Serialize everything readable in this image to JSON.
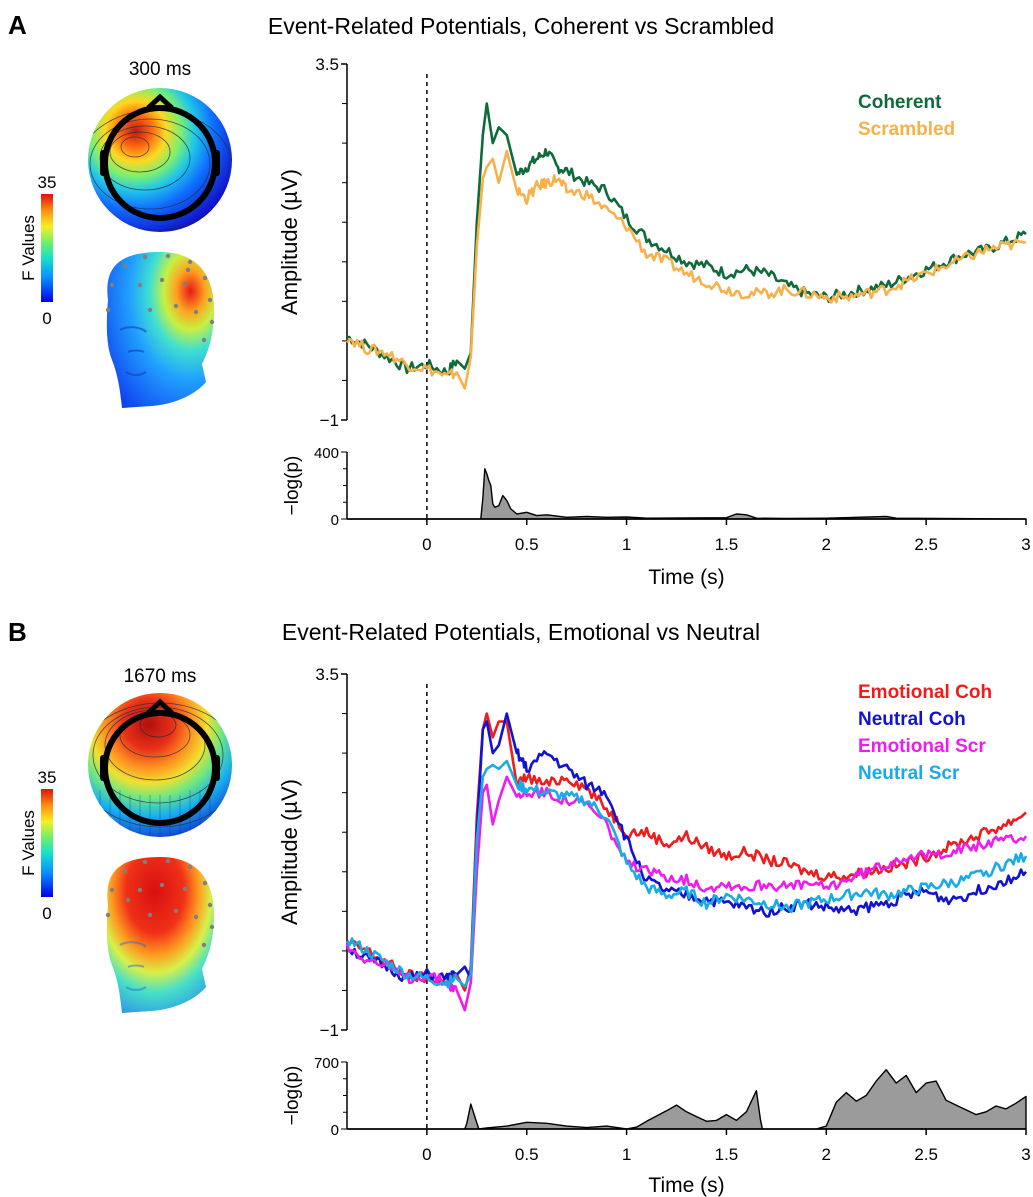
{
  "panels": [
    {
      "label": "A",
      "title": "Event-Related Potentials, Coherent vs Scrambled",
      "topo_time": "300 ms",
      "colorbar": {
        "title": "F Values",
        "max_label": "35",
        "min_label": "0"
      }
    },
    {
      "label": "B",
      "title": "Event-Related Potentials, Emotional vs Neutral",
      "topo_time": "1670 ms",
      "colorbar": {
        "title": "F Values",
        "max_label": "35",
        "min_label": "0"
      }
    }
  ],
  "colors": {
    "coherent": "#0f6a3c",
    "scrambled": "#f7b14a",
    "emotional_coh": "#ee1c1c",
    "neutral_coh": "#1313cf",
    "emotional_scr": "#ee1cee",
    "neutral_scr": "#1aaae6",
    "pvalue_fill": "#9b9b9b"
  },
  "chart_data": [
    {
      "type": "line",
      "panel": "A",
      "ylabel": "Amplitude (µV)",
      "xlabel": "Time (s)",
      "xlim": [
        -0.4,
        3
      ],
      "ylim": [
        -1,
        3.5
      ],
      "ytick_labels": [
        "3.5",
        "−1"
      ],
      "xticks": [
        0,
        0.5,
        1,
        1.5,
        2,
        2.5,
        3
      ],
      "xtick_labels": [
        "0",
        "0.5",
        "1",
        "1.5",
        "2",
        "2.5",
        "3"
      ],
      "stim_onset": 0,
      "legend_position": "top-right",
      "series": [
        {
          "name": "Coherent",
          "color": "#0f6a3c",
          "x": [
            -0.4,
            -0.3,
            -0.2,
            -0.1,
            0,
            0.1,
            0.15,
            0.19,
            0.22,
            0.25,
            0.28,
            0.3,
            0.33,
            0.36,
            0.4,
            0.45,
            0.5,
            0.55,
            0.6,
            0.65,
            0.7,
            0.8,
            0.9,
            1,
            1.1,
            1.2,
            1.3,
            1.4,
            1.5,
            1.6,
            1.7,
            1.8,
            1.9,
            2,
            2.1,
            2.2,
            2.3,
            2.4,
            2.5,
            2.6,
            2.7,
            2.8,
            2.9,
            3
          ],
          "y": [
            0.05,
            -0.05,
            -0.2,
            -0.35,
            -0.3,
            -0.4,
            -0.25,
            -0.35,
            -0.15,
            1.5,
            2.6,
            3.0,
            2.5,
            2.7,
            2.6,
            2.1,
            2.2,
            2.3,
            2.4,
            2.2,
            2.15,
            2.0,
            1.9,
            1.55,
            1.3,
            1.15,
            1.0,
            0.95,
            0.85,
            0.9,
            0.85,
            0.7,
            0.6,
            0.55,
            0.6,
            0.65,
            0.7,
            0.8,
            0.9,
            1.0,
            1.1,
            1.15,
            1.25,
            1.35
          ]
        },
        {
          "name": "Scrambled",
          "color": "#f7b14a",
          "x": [
            -0.4,
            -0.3,
            -0.2,
            -0.1,
            0,
            0.1,
            0.15,
            0.19,
            0.22,
            0.25,
            0.28,
            0.3,
            0.33,
            0.36,
            0.4,
            0.45,
            0.5,
            0.55,
            0.6,
            0.65,
            0.7,
            0.8,
            0.9,
            1,
            1.1,
            1.2,
            1.3,
            1.4,
            1.5,
            1.6,
            1.7,
            1.8,
            1.9,
            2,
            2.1,
            2.2,
            2.3,
            2.4,
            2.5,
            2.6,
            2.7,
            2.8,
            2.9,
            3
          ],
          "y": [
            0.05,
            -0.1,
            -0.15,
            -0.3,
            -0.35,
            -0.45,
            -0.4,
            -0.6,
            -0.2,
            1.2,
            2.05,
            2.2,
            2.3,
            2.0,
            2.4,
            1.9,
            1.8,
            1.95,
            2.0,
            2.05,
            1.9,
            1.85,
            1.65,
            1.45,
            1.1,
            1.0,
            0.85,
            0.75,
            0.65,
            0.6,
            0.6,
            0.65,
            0.6,
            0.55,
            0.55,
            0.6,
            0.65,
            0.75,
            0.85,
            0.95,
            1.05,
            1.15,
            1.2,
            1.25
          ]
        }
      ],
      "significance": {
        "ylabel": "−log(p)",
        "ylim": [
          0,
          400
        ],
        "ytick_labels": [
          "400",
          "0"
        ],
        "x": [
          -0.4,
          0.27,
          0.28,
          0.29,
          0.3,
          0.31,
          0.32,
          0.33,
          0.34,
          0.36,
          0.38,
          0.4,
          0.42,
          0.45,
          0.5,
          0.55,
          0.6,
          0.7,
          0.8,
          0.9,
          1.0,
          1.1,
          1.5,
          1.55,
          1.6,
          1.65,
          1.8,
          2.0,
          2.3,
          2.35,
          3
        ],
        "y": [
          0,
          0,
          120,
          300,
          270,
          230,
          200,
          90,
          70,
          80,
          140,
          110,
          60,
          30,
          40,
          20,
          25,
          10,
          15,
          10,
          12,
          5,
          8,
          30,
          25,
          5,
          3,
          5,
          15,
          5,
          0
        ]
      }
    },
    {
      "type": "line",
      "panel": "B",
      "ylabel": "Amplitude (µV)",
      "xlabel": "Time (s)",
      "xlim": [
        -0.4,
        3
      ],
      "ylim": [
        -1,
        3.5
      ],
      "ytick_labels": [
        "3.5",
        "−1"
      ],
      "xticks": [
        0,
        0.5,
        1,
        1.5,
        2,
        2.5,
        3
      ],
      "xtick_labels": [
        "0",
        "0.5",
        "1",
        "1.5",
        "2",
        "2.5",
        "3"
      ],
      "stim_onset": 0,
      "legend_position": "top-right",
      "series": [
        {
          "name": "Emotional Coh",
          "color": "#ee1c1c",
          "x": [
            -0.4,
            -0.3,
            -0.2,
            -0.1,
            0,
            0.1,
            0.15,
            0.19,
            0.22,
            0.25,
            0.28,
            0.3,
            0.33,
            0.36,
            0.4,
            0.45,
            0.5,
            0.6,
            0.7,
            0.8,
            0.9,
            1.0,
            1.1,
            1.2,
            1.3,
            1.4,
            1.5,
            1.6,
            1.7,
            1.8,
            1.9,
            2.0,
            2.1,
            2.2,
            2.3,
            2.4,
            2.5,
            2.6,
            2.7,
            2.8,
            2.9,
            3
          ],
          "y": [
            0.1,
            0,
            -0.15,
            -0.3,
            -0.35,
            -0.4,
            -0.3,
            -0.5,
            -0.2,
            1.7,
            2.8,
            3.0,
            2.7,
            2.9,
            2.9,
            2.1,
            2.2,
            2.1,
            2.2,
            2.05,
            1.8,
            1.5,
            1.5,
            1.35,
            1.45,
            1.3,
            1.2,
            1.25,
            1.15,
            1.1,
            1.0,
            0.95,
            0.95,
            1.0,
            1.05,
            1.1,
            1.2,
            1.3,
            1.4,
            1.5,
            1.6,
            1.75
          ]
        },
        {
          "name": "Neutral Coh",
          "color": "#1313cf",
          "x": [
            -0.4,
            -0.3,
            -0.2,
            -0.1,
            0,
            0.1,
            0.15,
            0.19,
            0.22,
            0.25,
            0.28,
            0.3,
            0.33,
            0.36,
            0.4,
            0.45,
            0.5,
            0.6,
            0.7,
            0.8,
            0.9,
            1.0,
            1.1,
            1.2,
            1.3,
            1.4,
            1.5,
            1.6,
            1.7,
            1.8,
            1.9,
            2.0,
            2.1,
            2.2,
            2.3,
            2.4,
            2.5,
            2.6,
            2.7,
            2.8,
            2.9,
            3
          ],
          "y": [
            0.05,
            -0.1,
            -0.2,
            -0.35,
            -0.3,
            -0.35,
            -0.3,
            -0.2,
            -0.35,
            1.5,
            2.8,
            2.9,
            2.5,
            2.6,
            3.0,
            2.5,
            2.3,
            2.5,
            2.3,
            2.1,
            2.0,
            1.4,
            0.9,
            0.75,
            0.7,
            0.65,
            0.6,
            0.55,
            0.5,
            0.55,
            0.6,
            0.55,
            0.5,
            0.55,
            0.6,
            0.7,
            0.75,
            0.65,
            0.7,
            0.8,
            0.9,
            1.0
          ]
        },
        {
          "name": "Emotional Scr",
          "color": "#ee1cee",
          "x": [
            -0.4,
            -0.3,
            -0.2,
            -0.1,
            0,
            0.1,
            0.15,
            0.19,
            0.22,
            0.25,
            0.28,
            0.3,
            0.33,
            0.36,
            0.4,
            0.45,
            0.5,
            0.6,
            0.7,
            0.8,
            0.9,
            1.0,
            1.1,
            1.2,
            1.3,
            1.4,
            1.5,
            1.6,
            1.7,
            1.8,
            1.9,
            2.0,
            2.1,
            2.2,
            2.3,
            2.4,
            2.5,
            2.6,
            2.7,
            2.8,
            2.9,
            3
          ],
          "y": [
            0.05,
            -0.1,
            -0.2,
            -0.35,
            -0.3,
            -0.4,
            -0.5,
            -0.75,
            -0.4,
            1.0,
            2.0,
            2.1,
            1.6,
            1.9,
            2.2,
            1.95,
            2.0,
            2.0,
            1.9,
            1.85,
            1.6,
            1.1,
            1.0,
            0.95,
            0.9,
            0.8,
            0.85,
            0.8,
            0.85,
            0.8,
            0.85,
            0.8,
            0.9,
            1.0,
            1.1,
            1.2,
            1.2,
            1.25,
            1.3,
            1.35,
            1.4,
            1.45
          ]
        },
        {
          "name": "Neutral Scr",
          "color": "#1aaae6",
          "x": [
            -0.4,
            -0.3,
            -0.2,
            -0.1,
            0,
            0.1,
            0.15,
            0.19,
            0.22,
            0.25,
            0.28,
            0.3,
            0.33,
            0.36,
            0.4,
            0.45,
            0.5,
            0.6,
            0.7,
            0.8,
            0.9,
            1.0,
            1.1,
            1.2,
            1.3,
            1.4,
            1.5,
            1.6,
            1.7,
            1.8,
            1.9,
            2.0,
            2.1,
            2.2,
            2.3,
            2.4,
            2.5,
            2.6,
            2.7,
            2.8,
            2.9,
            3
          ],
          "y": [
            0.15,
            0,
            -0.15,
            -0.3,
            -0.35,
            -0.4,
            -0.35,
            -0.45,
            -0.3,
            1.4,
            2.2,
            2.3,
            2.35,
            2.3,
            2.4,
            2.1,
            2.05,
            2.0,
            1.95,
            1.9,
            1.7,
            1.1,
            0.8,
            0.7,
            0.75,
            0.6,
            0.7,
            0.65,
            0.6,
            0.55,
            0.6,
            0.65,
            0.7,
            0.75,
            0.7,
            0.75,
            0.8,
            0.85,
            0.9,
            1.0,
            1.1,
            1.2
          ]
        }
      ],
      "significance": {
        "ylabel": "−log(p)",
        "ylim": [
          0,
          700
        ],
        "ytick_labels": [
          "700",
          "0"
        ],
        "x": [
          -0.4,
          0.19,
          0.2,
          0.22,
          0.24,
          0.26,
          0.3,
          0.4,
          0.5,
          0.6,
          0.7,
          0.8,
          0.9,
          1.0,
          1.05,
          1.1,
          1.2,
          1.25,
          1.3,
          1.35,
          1.4,
          1.45,
          1.5,
          1.55,
          1.6,
          1.65,
          1.67,
          1.68,
          1.7,
          1.8,
          1.9,
          1.95,
          2.0,
          2.05,
          2.1,
          2.15,
          2.2,
          2.25,
          2.3,
          2.35,
          2.4,
          2.45,
          2.5,
          2.55,
          2.6,
          2.65,
          2.7,
          2.75,
          2.8,
          2.85,
          2.9,
          2.95,
          3
        ],
        "y": [
          0,
          0,
          60,
          260,
          130,
          0,
          10,
          30,
          70,
          60,
          30,
          15,
          30,
          0,
          20,
          80,
          190,
          250,
          180,
          130,
          80,
          90,
          150,
          90,
          180,
          400,
          100,
          0,
          0,
          0,
          0,
          0,
          30,
          280,
          380,
          290,
          350,
          500,
          620,
          480,
          560,
          380,
          480,
          500,
          300,
          250,
          200,
          150,
          180,
          240,
          210,
          270,
          340
        ]
      }
    }
  ]
}
